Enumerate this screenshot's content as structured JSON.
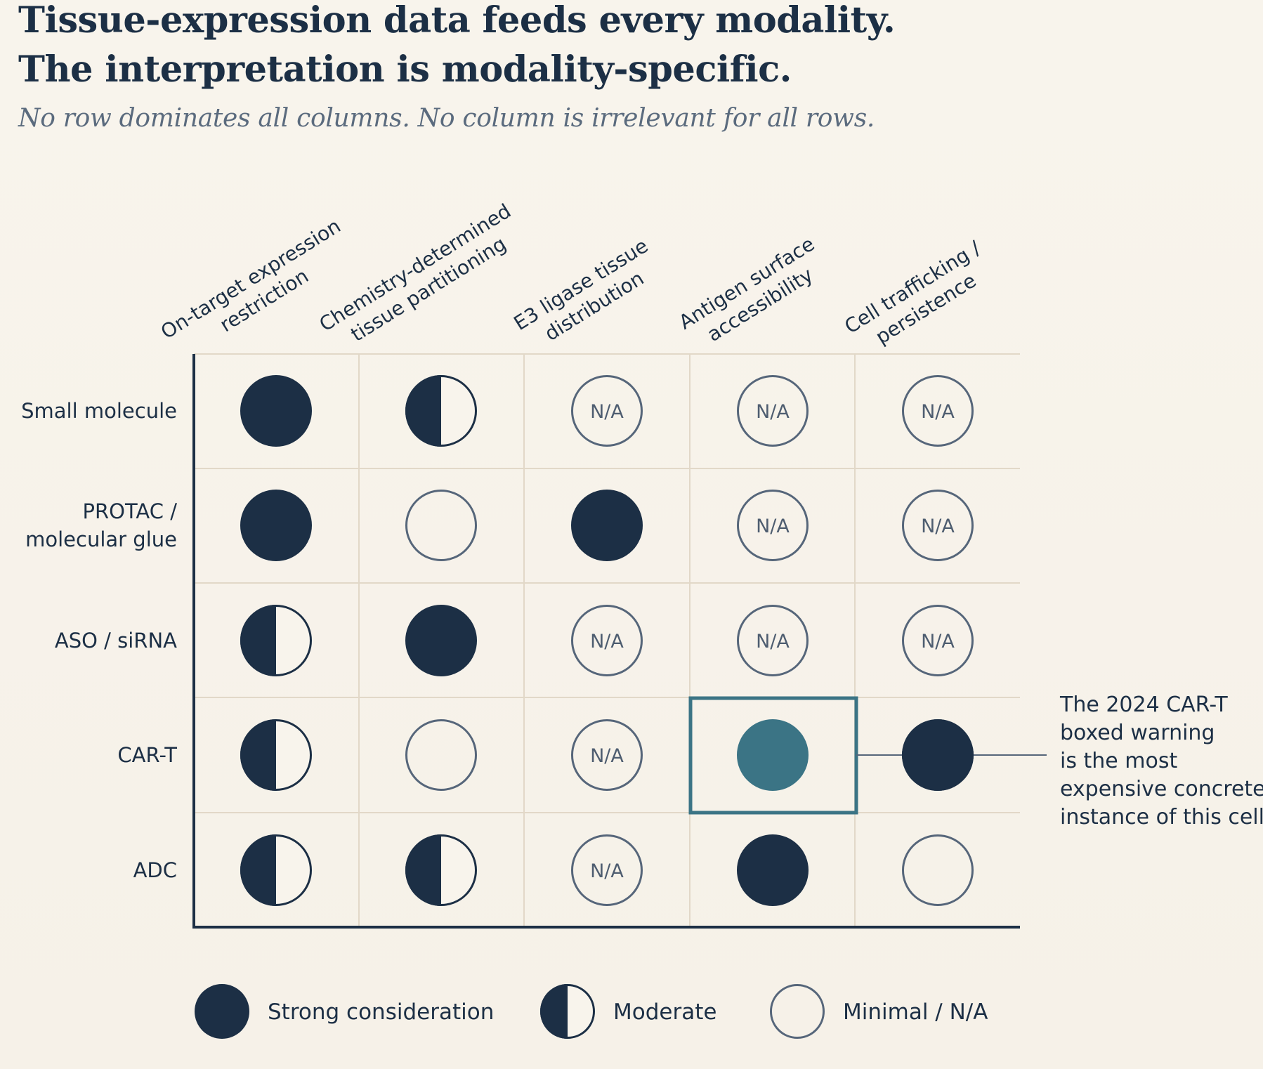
{
  "title_lines": [
    "Tissue-expression data feeds every modality.",
    "The interpretation is modality-specific."
  ],
  "subtitle": "No row dominates all columns. No column is irrelevant for all rows.",
  "columns": [
    {
      "lines": [
        "On-target expression",
        "restriction"
      ]
    },
    {
      "lines": [
        "Chemistry-determined",
        "tissue partitioning"
      ]
    },
    {
      "lines": [
        "E3 ligase tissue",
        "distribution"
      ]
    },
    {
      "lines": [
        "Antigen surface",
        "accessibility"
      ]
    },
    {
      "lines": [
        "Cell trafficking /",
        "persistence"
      ]
    }
  ],
  "rows": [
    {
      "lines": [
        "Small molecule"
      ]
    },
    {
      "lines": [
        "PROTAC /",
        "molecular glue"
      ]
    },
    {
      "lines": [
        "ASO / siRNA"
      ]
    },
    {
      "lines": [
        "CAR-T"
      ]
    },
    {
      "lines": [
        "ADC"
      ]
    }
  ],
  "na_label": "N/A",
  "cells": [
    [
      "strong",
      "moderate",
      "na",
      "na",
      "na"
    ],
    [
      "strong",
      "minimal",
      "strong",
      "na",
      "na"
    ],
    [
      "moderate",
      "strong",
      "na",
      "na",
      "na"
    ],
    [
      "moderate",
      "minimal",
      "na",
      "highlight",
      "strong"
    ],
    [
      "moderate",
      "moderate",
      "na",
      "strong",
      "minimal"
    ]
  ],
  "highlight": {
    "row": 3,
    "col": 3,
    "annotation_lines": [
      "The 2024 CAR-T",
      "boxed warning",
      "is the most",
      "expensive concrete",
      "instance of this cell."
    ]
  },
  "legend": [
    {
      "kind": "strong",
      "label": "Strong consideration"
    },
    {
      "kind": "moderate",
      "label": "Moderate"
    },
    {
      "kind": "minimal",
      "label": "Minimal / N/A"
    }
  ],
  "colors": {
    "navy": "#1c2f45",
    "teal": "#3b7485",
    "grid": "#e2d8c8",
    "outline": "#56667a",
    "background": "#f8f4ec"
  }
}
